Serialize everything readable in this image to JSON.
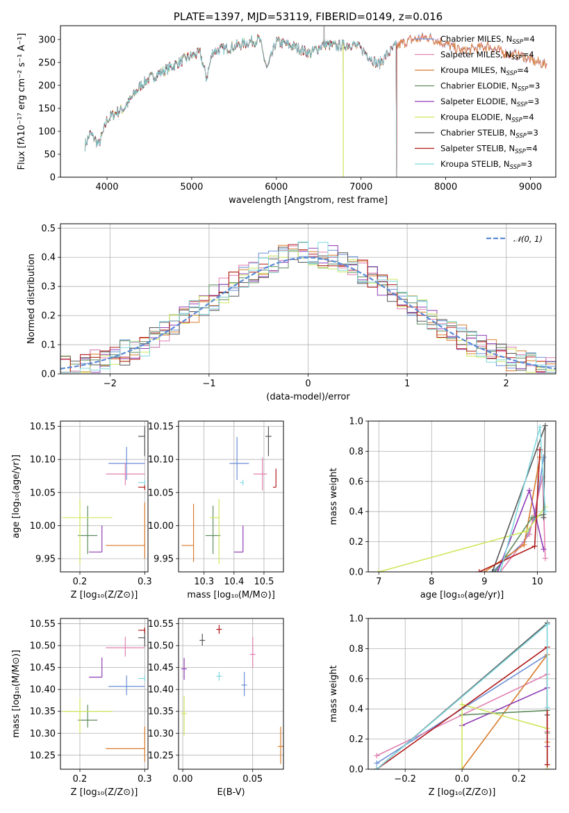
{
  "colors": {
    "Chabrier MILES": "#6a8fd6",
    "Salpeter MILES": "#e07fb0",
    "Kroupa MILES": "#d87a2a",
    "Chabrier ELODIE": "#5e8c5e",
    "Salpeter ELODIE": "#8e3bb5",
    "Kroupa ELODIE": "#cfe65a",
    "Chabrier STELIB": "#555555",
    "Salpeter STELIB": "#b01818",
    "Kroupa STELIB": "#7fd8df",
    "reference": "#5a8ad6"
  },
  "chart_data": [
    {
      "id": "spectrum",
      "type": "line",
      "title": "PLATE=1397, MJD=53119, FIBERID=0149, z=0.016",
      "xlabel": "wavelength [Angstrom, rest frame]",
      "ylabel": "Flux [fλ10⁻¹⁷ erg cm⁻² s⁻¹ A⁻¹]",
      "xlim": [
        3450,
        9300
      ],
      "ylim": [
        0,
        330
      ],
      "xticks": [
        4000,
        5000,
        6000,
        7000,
        8000,
        9000
      ],
      "yticks": [
        0,
        50,
        100,
        150,
        200,
        250,
        300
      ],
      "grid": false,
      "legend_position": "top-right",
      "data_envelope": {
        "x": [
          3740,
          3800,
          3850,
          3900,
          3950,
          4000,
          4100,
          4200,
          4300,
          4400,
          4500,
          4600,
          4700,
          4800,
          4900,
          5000,
          5100,
          5175,
          5250,
          5400,
          5600,
          5800,
          5890,
          6000,
          6200,
          6400,
          6563,
          6700,
          6900,
          7000,
          7200,
          7400,
          7600,
          7800,
          8000,
          8200,
          8500,
          8700,
          8900,
          9000,
          9200
        ],
        "y": [
          70,
          95,
          85,
          70,
          95,
          125,
          140,
          150,
          175,
          200,
          215,
          225,
          235,
          245,
          255,
          265,
          270,
          215,
          275,
          280,
          290,
          300,
          235,
          295,
          285,
          270,
          290,
          285,
          290,
          280,
          245,
          285,
          300,
          305,
          290,
          275,
          285,
          270,
          265,
          255,
          245
        ]
      },
      "series": [
        {
          "name": "Chabrier MILES, N_SSP=4",
          "model": "Chabrier MILES",
          "cutoff": null
        },
        {
          "name": "Salpeter MILES, N_SSP=4",
          "model": "Salpeter MILES",
          "cutoff": null
        },
        {
          "name": "Kroupa MILES, N_SSP=4",
          "model": "Kroupa MILES",
          "cutoff": null
        },
        {
          "name": "Chabrier ELODIE, N_SSP=3",
          "model": "Chabrier ELODIE",
          "cutoff": 6790
        },
        {
          "name": "Salpeter ELODIE, N_SSP=3",
          "model": "Salpeter ELODIE",
          "cutoff": 6790
        },
        {
          "name": "Kroupa ELODIE, N_SSP=4",
          "model": "Kroupa ELODIE",
          "cutoff": 6790
        },
        {
          "name": "Chabrier STELIB, N_SSP=3",
          "model": "Chabrier STELIB",
          "cutoff": 7420
        },
        {
          "name": "Salpeter STELIB, N_SSP=4",
          "model": "Salpeter STELIB",
          "cutoff": 7420
        },
        {
          "name": "Kroupa STELIB, N_SSP=3",
          "model": "Kroupa STELIB",
          "cutoff": 7420
        }
      ]
    },
    {
      "id": "residuals",
      "type": "histogram",
      "xlabel": "(data-model)/error",
      "ylabel": "Normed distribution",
      "xlim": [
        -2.5,
        2.5
      ],
      "ylim": [
        0,
        0.515
      ],
      "xticks": [
        -2,
        -1,
        0,
        1,
        2
      ],
      "yticks": [
        0,
        0.1,
        0.2,
        0.3,
        0.4,
        0.5
      ],
      "grid": true,
      "legend_position": "top-right",
      "bin_width": 0.1,
      "reference_curve": {
        "name": "𝒩(0, 1)",
        "mean": 0,
        "sigma": 1
      }
    },
    {
      "id": "age_vs_Z",
      "type": "errorbar",
      "xlabel": "Z [log₁₀(Z/Z⊙)]",
      "ylabel": "age  [log₁₀(age/yr)]",
      "xlim": [
        0.17,
        0.305
      ],
      "ylim": [
        9.93,
        10.158
      ],
      "xticks": [
        0.2,
        0.3
      ],
      "yticks": [
        9.95,
        10.0,
        10.05,
        10.1,
        10.15
      ],
      "grid": true,
      "points": [
        {
          "model": "Chabrier MILES",
          "x": 0.272,
          "y": 10.094,
          "xerr": [
            0.028,
            0.028
          ],
          "yerr": [
            0.025,
            0.025
          ]
        },
        {
          "model": "Salpeter MILES",
          "x": 0.27,
          "y": 10.078,
          "xerr": [
            0.03,
            0.03
          ],
          "yerr": [
            0.017,
            0.017
          ]
        },
        {
          "model": "Kroupa MILES",
          "x": 0.3,
          "y": 9.97,
          "xerr": [
            0.06,
            0.0
          ],
          "yerr": [
            0.02,
            0.065
          ]
        },
        {
          "model": "Chabrier ELODIE",
          "x": 0.212,
          "y": 9.985,
          "xerr": [
            0.015,
            0.015
          ],
          "yerr": [
            0.028,
            0.045
          ]
        },
        {
          "model": "Salpeter ELODIE",
          "x": 0.234,
          "y": 9.96,
          "xerr": [
            0.02,
            0.0
          ],
          "yerr": [
            0.0,
            0.04
          ]
        },
        {
          "model": "Kroupa ELODIE",
          "x": 0.2,
          "y": 10.012,
          "xerr": [
            0.027,
            0.05
          ],
          "yerr": [
            0.07,
            0.028
          ]
        },
        {
          "model": "Chabrier STELIB",
          "x": 0.3,
          "y": 10.135,
          "xerr": [
            0.01,
            0.0
          ],
          "yerr": [
            0.03,
            0.015
          ]
        },
        {
          "model": "Salpeter STELIB",
          "x": 0.3,
          "y": 10.058,
          "xerr": [
            0.01,
            0.0
          ],
          "yerr": [
            0.0,
            0.0
          ]
        },
        {
          "model": "Kroupa STELIB",
          "x": 0.3,
          "y": 10.065,
          "xerr": [
            0.01,
            0.0
          ],
          "yerr": [
            0.0,
            0.0
          ]
        }
      ]
    },
    {
      "id": "age_vs_mass",
      "type": "errorbar",
      "xlabel": "mass [log₁₀(M/M⊙)]",
      "ylabel": "",
      "xlim": [
        10.215,
        10.565
      ],
      "ylim": [
        9.93,
        10.158
      ],
      "xticks": [
        10.3,
        10.4,
        10.5
      ],
      "yticks": [
        9.95,
        10.0,
        10.05,
        10.1,
        10.15
      ],
      "grid": true,
      "points": [
        {
          "model": "Chabrier MILES",
          "x": 10.41,
          "y": 10.094,
          "xerr": [
            0.025,
            0.04
          ],
          "yerr": [
            0.025,
            0.04
          ]
        },
        {
          "model": "Salpeter MILES",
          "x": 10.495,
          "y": 10.078,
          "xerr": [
            0.03,
            0.015
          ],
          "yerr": [
            0.025,
            0.025
          ]
        },
        {
          "model": "Kroupa MILES",
          "x": 10.265,
          "y": 9.97,
          "xerr": [
            0.04,
            0.0
          ],
          "yerr": [
            0.025,
            0.063
          ]
        },
        {
          "model": "Chabrier ELODIE",
          "x": 10.33,
          "y": 9.985,
          "xerr": [
            0.025,
            0.025
          ],
          "yerr": [
            0.028,
            0.045
          ]
        },
        {
          "model": "Salpeter ELODIE",
          "x": 10.43,
          "y": 9.96,
          "xerr": [
            0.03,
            0.0
          ],
          "yerr": [
            0.0,
            0.04
          ]
        },
        {
          "model": "Kroupa ELODIE",
          "x": 10.35,
          "y": 10.012,
          "xerr": [
            0.03,
            0.0
          ],
          "yerr": [
            0.07,
            0.028
          ]
        },
        {
          "model": "Chabrier STELIB",
          "x": 10.515,
          "y": 10.135,
          "xerr": [
            0.01,
            0.01
          ],
          "yerr": [
            0.03,
            0.015
          ]
        },
        {
          "model": "Salpeter STELIB",
          "x": 10.54,
          "y": 10.058,
          "xerr": [
            0.01,
            0.0
          ],
          "yerr": [
            0.0,
            0.028
          ]
        },
        {
          "model": "Kroupa STELIB",
          "x": 10.43,
          "y": 10.065,
          "xerr": [
            0.01,
            0.0
          ],
          "yerr": [
            0.0,
            0.0
          ]
        }
      ]
    },
    {
      "id": "weight_vs_age",
      "type": "line",
      "xlabel": "age  [log₁₀(age/yr)]",
      "ylabel": "mass weight",
      "xlim": [
        6.8,
        10.35
      ],
      "ylim": [
        0,
        1.0
      ],
      "xticks": [
        7,
        8,
        9,
        10
      ],
      "yticks": [
        0.0,
        0.2,
        0.4,
        0.6,
        0.8,
        1.0
      ],
      "grid": true,
      "series": [
        {
          "model": "Chabrier MILES",
          "x": [
            9.15,
            9.75,
            9.95,
            10.12
          ],
          "y": [
            0.0,
            0.2,
            0.36,
            0.76
          ]
        },
        {
          "model": "Salpeter MILES",
          "x": [
            9.3,
            9.85,
            10.1,
            10.15
          ],
          "y": [
            0.0,
            0.25,
            0.63,
            0.09
          ]
        },
        {
          "model": "Kroupa MILES",
          "x": [
            9.0,
            9.75,
            10.05
          ],
          "y": [
            0.0,
            0.18,
            0.76
          ]
        },
        {
          "model": "Chabrier ELODIE",
          "x": [
            9.2,
            9.9,
            10.12
          ],
          "y": [
            0.0,
            0.36,
            0.38
          ]
        },
        {
          "model": "Salpeter ELODIE",
          "x": [
            9.25,
            9.85,
            10.12
          ],
          "y": [
            0.0,
            0.54,
            0.15
          ]
        },
        {
          "model": "Kroupa ELODIE",
          "x": [
            7.0,
            9.8,
            10.15
          ],
          "y": [
            0.0,
            0.27,
            0.43
          ]
        },
        {
          "model": "Chabrier STELIB",
          "x": [
            9.15,
            10.15,
            10.12
          ],
          "y": [
            0.0,
            0.97,
            0.36
          ]
        },
        {
          "model": "Salpeter STELIB",
          "x": [
            8.9,
            9.95,
            10.05
          ],
          "y": [
            0.0,
            0.17,
            0.81
          ]
        },
        {
          "model": "Kroupa STELIB",
          "x": [
            9.3,
            10.05,
            10.15
          ],
          "y": [
            0.0,
            0.96,
            0.4
          ]
        }
      ]
    },
    {
      "id": "mass_vs_Z",
      "type": "errorbar",
      "xlabel": "Z [log₁₀(Z/Z⊙)]",
      "ylabel": "mass [log₁₀(M/M⊙)]",
      "xlim": [
        0.17,
        0.305
      ],
      "ylim": [
        10.218,
        10.562
      ],
      "xticks": [
        0.2,
        0.3
      ],
      "yticks": [
        10.25,
        10.3,
        10.35,
        10.4,
        10.45,
        10.5,
        10.55
      ],
      "grid": true,
      "points": [
        {
          "model": "Chabrier MILES",
          "x": 0.272,
          "y": 10.407,
          "xerr": [
            0.028,
            0.028
          ],
          "yerr": [
            0.02,
            0.025
          ]
        },
        {
          "model": "Salpeter MILES",
          "x": 0.27,
          "y": 10.495,
          "xerr": [
            0.03,
            0.03
          ],
          "yerr": [
            0.02,
            0.025
          ]
        },
        {
          "model": "Kroupa MILES",
          "x": 0.3,
          "y": 10.265,
          "xerr": [
            0.06,
            0.0
          ],
          "yerr": [
            0.03,
            0.05
          ]
        },
        {
          "model": "Chabrier ELODIE",
          "x": 0.212,
          "y": 10.33,
          "xerr": [
            0.015,
            0.015
          ],
          "yerr": [
            0.017,
            0.035
          ]
        },
        {
          "model": "Salpeter ELODIE",
          "x": 0.234,
          "y": 10.428,
          "xerr": [
            0.02,
            0.0
          ],
          "yerr": [
            0.0,
            0.045
          ]
        },
        {
          "model": "Kroupa ELODIE",
          "x": 0.2,
          "y": 10.35,
          "xerr": [
            0.027,
            0.05
          ],
          "yerr": [
            0.05,
            0.03
          ]
        },
        {
          "model": "Chabrier STELIB",
          "x": 0.3,
          "y": 10.518,
          "xerr": [
            0.01,
            0.0
          ],
          "yerr": [
            0.02,
            0.02
          ]
        },
        {
          "model": "Salpeter STELIB",
          "x": 0.3,
          "y": 10.535,
          "xerr": [
            0.01,
            0.0
          ],
          "yerr": [
            0.0,
            0.0
          ]
        },
        {
          "model": "Kroupa STELIB",
          "x": 0.3,
          "y": 10.425,
          "xerr": [
            0.01,
            0.0
          ],
          "yerr": [
            0.0,
            0.0
          ]
        }
      ]
    },
    {
      "id": "mass_vs_EBV",
      "type": "errorbar",
      "xlabel": "E(B-V)",
      "ylabel": "",
      "xlim": [
        -0.003,
        0.072
      ],
      "ylim": [
        10.218,
        10.562
      ],
      "xticks": [
        0.0,
        0.05
      ],
      "yticks": [
        10.25,
        10.3,
        10.35,
        10.4,
        10.45,
        10.5,
        10.55
      ],
      "grid": true,
      "points": [
        {
          "model": "Chabrier MILES",
          "x": 0.044,
          "y": 10.41,
          "xerr": [
            0,
            0
          ],
          "yerr": [
            0.025,
            0.03
          ]
        },
        {
          "model": "Salpeter MILES",
          "x": 0.05,
          "y": 10.48,
          "xerr": [
            0,
            0
          ],
          "yerr": [
            0.03,
            0.04
          ]
        },
        {
          "model": "Kroupa MILES",
          "x": 0.07,
          "y": 10.27,
          "xerr": [
            0,
            0
          ],
          "yerr": [
            0.04,
            0.045
          ]
        },
        {
          "model": "Salpeter ELODIE",
          "x": 0.001,
          "y": 10.447,
          "xerr": [
            0,
            0
          ],
          "yerr": [
            0.025,
            0.025
          ]
        },
        {
          "model": "Kroupa ELODIE",
          "x": 0.001,
          "y": 10.345,
          "xerr": [
            0,
            0
          ],
          "yerr": [
            0.05,
            0.04
          ]
        },
        {
          "model": "Chabrier STELIB",
          "x": 0.014,
          "y": 10.512,
          "xerr": [
            0,
            0
          ],
          "yerr": [
            0.012,
            0.015
          ]
        },
        {
          "model": "Salpeter STELIB",
          "x": 0.026,
          "y": 10.537,
          "xerr": [
            0,
            0
          ],
          "yerr": [
            0.01,
            0.01
          ]
        },
        {
          "model": "Kroupa STELIB",
          "x": 0.026,
          "y": 10.43,
          "xerr": [
            0,
            0
          ],
          "yerr": [
            0.01,
            0.01
          ]
        }
      ]
    },
    {
      "id": "weight_vs_Z",
      "type": "line",
      "xlabel": "Z [log₁₀(Z/Z⊙)]",
      "ylabel": "mass weight",
      "xlim": [
        -0.33,
        0.33
      ],
      "ylim": [
        0,
        1.0
      ],
      "xticks": [
        -0.2,
        0.0,
        0.2
      ],
      "yticks": [
        0.0,
        0.2,
        0.4,
        0.6,
        0.8,
        1.0
      ],
      "grid": true,
      "series": [
        {
          "model": "Chabrier MILES",
          "x": [
            -0.3,
            0.3,
            0.3
          ],
          "y": [
            0.04,
            0.76,
            0.0
          ]
        },
        {
          "model": "Salpeter MILES",
          "x": [
            -0.3,
            0.3,
            0.3
          ],
          "y": [
            0.09,
            0.63,
            0.25
          ]
        },
        {
          "model": "Kroupa MILES",
          "x": [
            0.0,
            0.3,
            0.3
          ],
          "y": [
            0.0,
            0.76,
            0.18
          ]
        },
        {
          "model": "Chabrier ELODIE",
          "x": [
            0.0,
            0.3,
            0.3
          ],
          "y": [
            0.36,
            0.39,
            0.24
          ]
        },
        {
          "model": "Salpeter ELODIE",
          "x": [
            0.0,
            0.3,
            0.3
          ],
          "y": [
            0.29,
            0.54,
            0.15
          ]
        },
        {
          "model": "Kroupa ELODIE",
          "x": [
            0.0,
            0.0,
            0.3,
            0.3
          ],
          "y": [
            0.0,
            0.43,
            0.27,
            0.0
          ]
        },
        {
          "model": "Chabrier STELIB",
          "x": [
            -0.3,
            0.3,
            0.3
          ],
          "y": [
            0.0,
            0.97,
            0.36
          ]
        },
        {
          "model": "Salpeter STELIB",
          "x": [
            -0.3,
            0.3,
            0.3
          ],
          "y": [
            0.0,
            0.81,
            0.03
          ]
        },
        {
          "model": "Kroupa STELIB",
          "x": [
            -0.3,
            0.3,
            0.3
          ],
          "y": [
            0.0,
            0.96,
            0.41
          ]
        }
      ]
    }
  ]
}
